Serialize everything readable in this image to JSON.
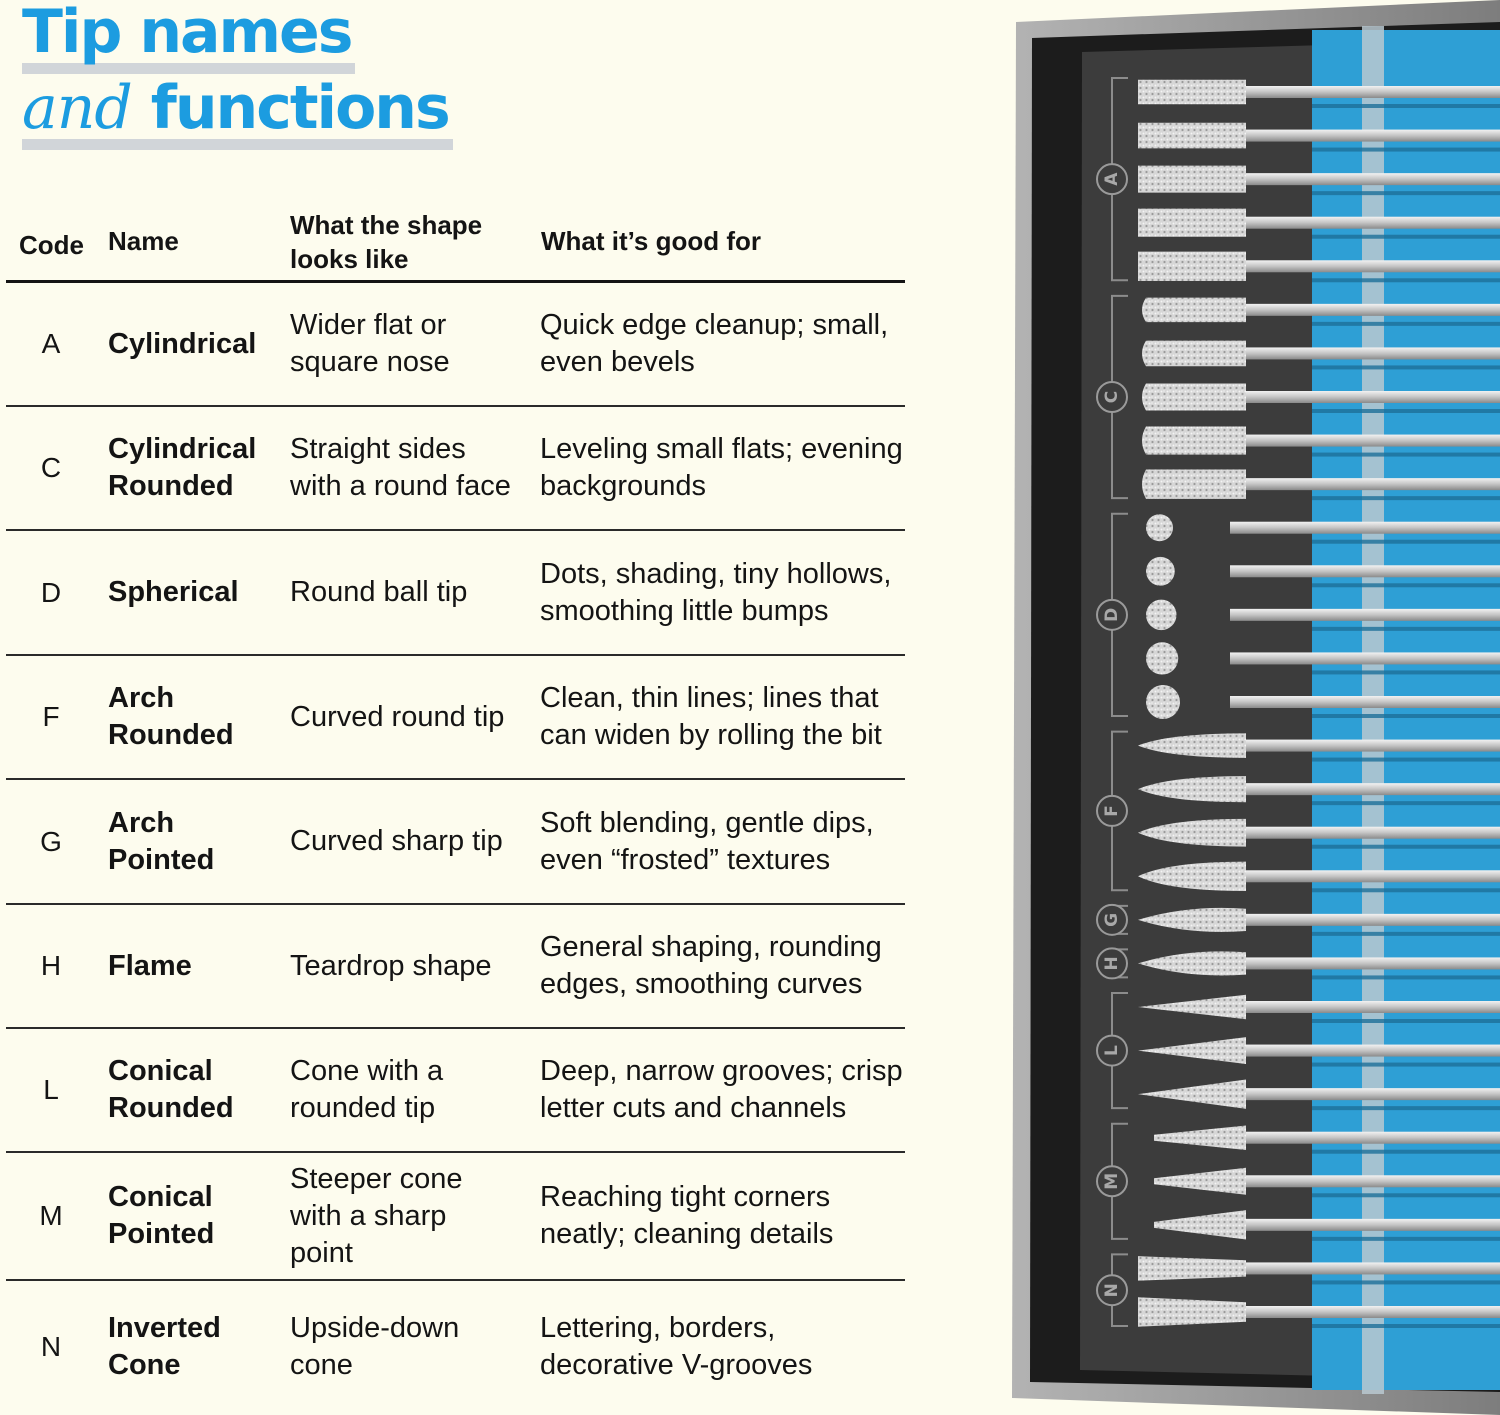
{
  "title": {
    "line1": "Tip names",
    "line2_italic": "and",
    "line2_bold": "functions"
  },
  "table": {
    "headers": {
      "code": "Code",
      "name": "Name",
      "shape": "What the shape\nlooks like",
      "good": "What it’s good for"
    },
    "rows": [
      {
        "code": "A",
        "name": "Cylindrical",
        "shape": "Wider flat or\nsquare nose",
        "good": "Quick edge cleanup; small,\neven bevels"
      },
      {
        "code": "C",
        "name": "Cylindrical\nRounded",
        "shape": "Straight sides\nwith a round face",
        "good": "Leveling small flats; evening\nbackgrounds"
      },
      {
        "code": "D",
        "name": "Spherical",
        "shape": "Round ball tip",
        "good": "Dots, shading, tiny hollows,\nsmoothing little bumps"
      },
      {
        "code": "F",
        "name": "Arch\nRounded",
        "shape": "Curved round tip",
        "good": "Clean, thin lines; lines that\ncan widen by rolling the bit"
      },
      {
        "code": "G",
        "name": "Arch\nPointed",
        "shape": "Curved sharp tip",
        "good": "Soft blending, gentle dips,\neven “frosted” textures"
      },
      {
        "code": "H",
        "name": "Flame",
        "shape": "Teardrop shape",
        "good": "General shaping, rounding\nedges, smoothing curves"
      },
      {
        "code": "L",
        "name": "Conical\nRounded",
        "shape": "Cone with a\nrounded tip",
        "good": "Deep, narrow grooves; crisp\nletter cuts and channels"
      },
      {
        "code": "M",
        "name": "Conical\nPointed",
        "shape": "Steeper cone\nwith a sharp\npoint",
        "good": "Reaching tight corners\nneatly; cleaning details"
      },
      {
        "code": "N",
        "name": "Inverted\nCone",
        "shape": "Upside-down\ncone",
        "good": "Lettering, borders,\ndecorative V-grooves"
      }
    ]
  },
  "tray": {
    "groups": [
      {
        "letter": "A",
        "bits": [
          "cylinder",
          "cylinder",
          "cylinder",
          "cylinder",
          "cylinder"
        ]
      },
      {
        "letter": "C",
        "bits": [
          "rounded",
          "rounded",
          "rounded",
          "rounded",
          "rounded"
        ]
      },
      {
        "letter": "D",
        "bits": [
          "ball",
          "ball",
          "ball",
          "ball",
          "ball"
        ]
      },
      {
        "letter": "F",
        "bits": [
          "arch",
          "arch",
          "arch",
          "arch"
        ]
      },
      {
        "letter": "G",
        "bits": [
          "pointed"
        ]
      },
      {
        "letter": "H",
        "bits": [
          "flame"
        ]
      },
      {
        "letter": "L",
        "bits": [
          "cone",
          "cone",
          "cone"
        ]
      },
      {
        "letter": "M",
        "bits": [
          "steep",
          "steep",
          "steep"
        ]
      },
      {
        "letter": "N",
        "bits": [
          "inverted",
          "inverted"
        ]
      }
    ],
    "colors": {
      "frame": "#8e8e8e",
      "tray": "#3c3c3c",
      "holder": "#2e9fd5",
      "diamond": "#d9d9d9",
      "shank": "#c6c6c6"
    }
  }
}
